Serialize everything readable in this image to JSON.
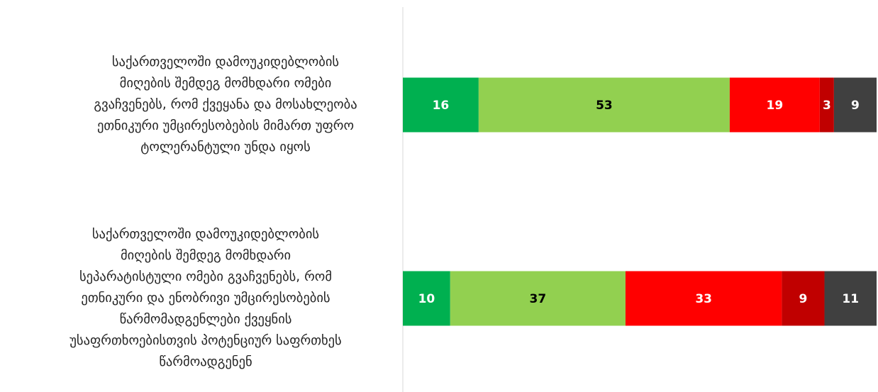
{
  "chart_data": {
    "type": "stacked-bar-horizontal",
    "categories": [
      "საქართველოში დამოუკიდებლობის\nმიღების შემდეგ მომხდარი ომები\nგვაჩვენებს, რომ ქვეყანა და მოსახლეობა\nეთნიკური უმცირესობების მიმართ უფრო\nტოლერანტული უნდა იყოს",
      "საქართველოში დამოუკიდებლობის\nმიღების შემდეგ მომხდარი\nსეპარატისტული ომები გვაჩვენებს, რომ\nეთნიკური და ენობრივი უმცირესობების\nწარმომადგენლები ქვეყნის\nუსაფრთხოებისთვის პოტენციურ საფრთხეს\nწარმოადგენენ"
    ],
    "series": [
      {
        "color": "#00b050",
        "values": [
          16,
          10
        ]
      },
      {
        "color": "#92d050",
        "values": [
          53,
          37
        ]
      },
      {
        "color": "#ff0000",
        "values": [
          19,
          33
        ]
      },
      {
        "color": "#c00000",
        "values": [
          3,
          9
        ]
      },
      {
        "color": "#404040",
        "values": [
          9,
          11
        ]
      }
    ],
    "xlim": [
      0,
      100
    ]
  }
}
